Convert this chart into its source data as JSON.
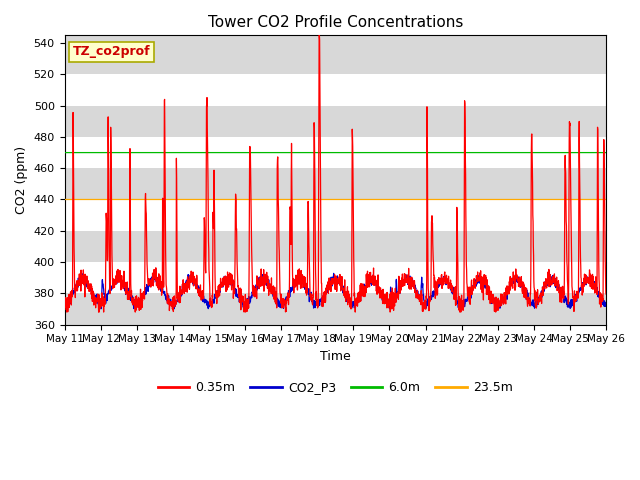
{
  "title": "Tower CO2 Profile Concentrations",
  "xlabel": "Time",
  "ylabel": "CO2 (ppm)",
  "ylim": [
    360,
    545
  ],
  "yticks": [
    360,
    380,
    400,
    420,
    440,
    460,
    480,
    500,
    520,
    540
  ],
  "legend_label": "TZ_co2prof",
  "series_labels": [
    "0.35m",
    "CO2_P3",
    "6.0m",
    "23.5m"
  ],
  "series_colors": [
    "#ff0000",
    "#0000cd",
    "#00bb00",
    "#ffaa00"
  ],
  "background_color": "#ffffff",
  "plot_bg_light": "#f0f0f0",
  "plot_bg_dark": "#d8d8d8",
  "num_days": 15,
  "x_tick_labels": [
    "May 1",
    "May 1",
    "May 1",
    "May 1",
    "May 1",
    "May 1",
    "May 1",
    "May 1",
    "May 1",
    "May 2",
    "May 2",
    "May 2",
    "May 2",
    "May 2",
    "May 2",
    "May 26"
  ],
  "x_tick_labels_full": [
    "May 11",
    "May 12",
    "May 13",
    "May 14",
    "May 15",
    "May 16",
    "May 17",
    "May 18",
    "May 19",
    "May 20",
    "May 21",
    "May 22",
    "May 23",
    "May 24",
    "May 25",
    "May 26"
  ]
}
